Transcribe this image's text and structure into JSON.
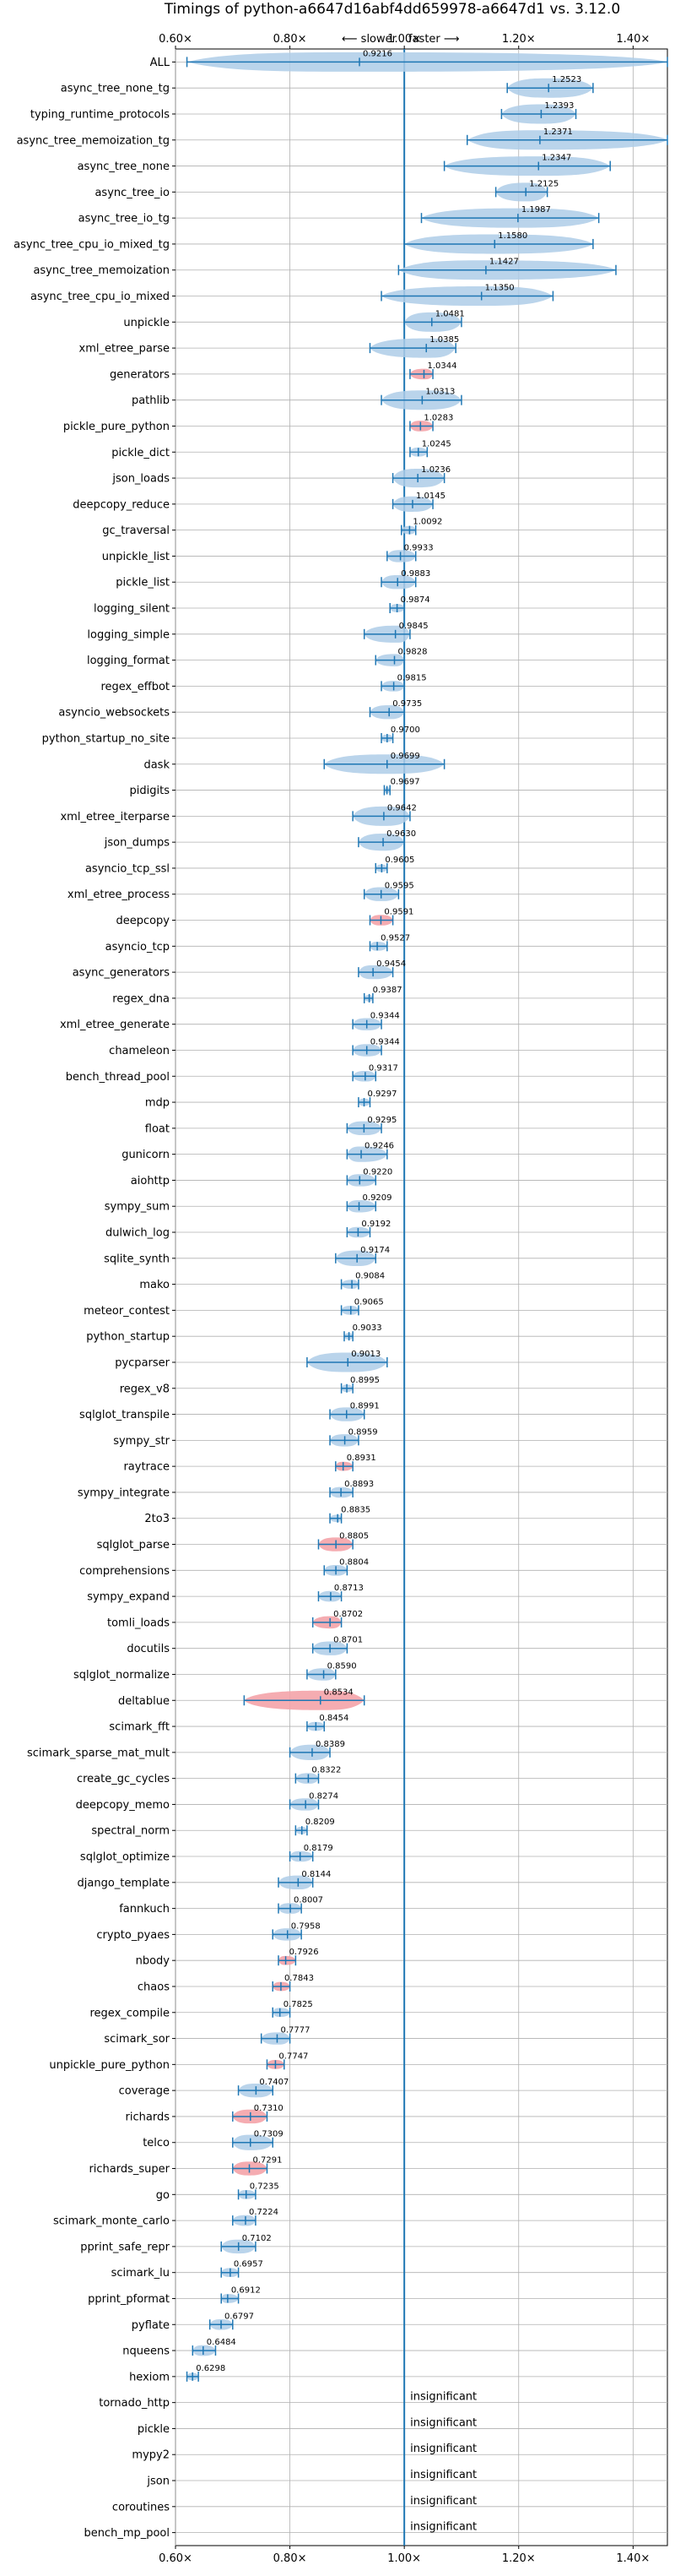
{
  "chart_data": {
    "type": "violin",
    "title": "Timings of python-a6647d16abf4dd659978-a6647d1 vs. 3.12.0",
    "direction_labels": {
      "slower": "⟵ slower",
      "faster": "faster ⟶"
    },
    "xlim": [
      0.6,
      1.46
    ],
    "xticks": [
      {
        "value": 0.6,
        "label": "0.60×"
      },
      {
        "value": 0.8,
        "label": "0.80×"
      },
      {
        "value": 1.0,
        "label": "1.00×"
      },
      {
        "value": 1.2,
        "label": "1.20×"
      },
      {
        "value": 1.4,
        "label": "1.40×"
      }
    ],
    "insignificant_label": "insignificant",
    "colors": {
      "normal": "#1f77b4",
      "highlight": "#f4a3a8",
      "reference": "#1f77b4"
    },
    "benchmarks": [
      {
        "name": "ALL",
        "value": 0.9216,
        "label": "0.9216",
        "lo": 0.62,
        "hi": 1.46,
        "red": false
      },
      {
        "name": "async_tree_none_tg",
        "value": 1.2523,
        "label": "1.2523",
        "lo": 1.18,
        "hi": 1.33,
        "red": false
      },
      {
        "name": "typing_runtime_protocols",
        "value": 1.2393,
        "label": "1.2393",
        "lo": 1.17,
        "hi": 1.3,
        "red": false
      },
      {
        "name": "async_tree_memoization_tg",
        "value": 1.2371,
        "label": "1.2371",
        "lo": 1.11,
        "hi": 1.46,
        "red": false
      },
      {
        "name": "async_tree_none",
        "value": 1.2347,
        "label": "1.2347",
        "lo": 1.07,
        "hi": 1.36,
        "red": false
      },
      {
        "name": "async_tree_io",
        "value": 1.2125,
        "label": "1.2125",
        "lo": 1.16,
        "hi": 1.25,
        "red": false
      },
      {
        "name": "async_tree_io_tg",
        "value": 1.1987,
        "label": "1.1987",
        "lo": 1.03,
        "hi": 1.34,
        "red": false
      },
      {
        "name": "async_tree_cpu_io_mixed_tg",
        "value": 1.158,
        "label": "1.1580",
        "lo": 1.0,
        "hi": 1.33,
        "red": false
      },
      {
        "name": "async_tree_memoization",
        "value": 1.1427,
        "label": "1.1427",
        "lo": 0.99,
        "hi": 1.37,
        "red": false
      },
      {
        "name": "async_tree_cpu_io_mixed",
        "value": 1.135,
        "label": "1.1350",
        "lo": 0.96,
        "hi": 1.26,
        "red": false
      },
      {
        "name": "unpickle",
        "value": 1.0481,
        "label": "1.0481",
        "lo": 1.0,
        "hi": 1.1,
        "red": false
      },
      {
        "name": "xml_etree_parse",
        "value": 1.0385,
        "label": "1.0385",
        "lo": 0.94,
        "hi": 1.09,
        "red": false
      },
      {
        "name": "generators",
        "value": 1.0344,
        "label": "1.0344",
        "lo": 1.01,
        "hi": 1.05,
        "red": true
      },
      {
        "name": "pathlib",
        "value": 1.0313,
        "label": "1.0313",
        "lo": 0.96,
        "hi": 1.1,
        "red": false
      },
      {
        "name": "pickle_pure_python",
        "value": 1.0283,
        "label": "1.0283",
        "lo": 1.01,
        "hi": 1.05,
        "red": true
      },
      {
        "name": "pickle_dict",
        "value": 1.0245,
        "label": "1.0245",
        "lo": 1.01,
        "hi": 1.04,
        "red": false
      },
      {
        "name": "json_loads",
        "value": 1.0236,
        "label": "1.0236",
        "lo": 0.98,
        "hi": 1.07,
        "red": false
      },
      {
        "name": "deepcopy_reduce",
        "value": 1.0145,
        "label": "1.0145",
        "lo": 0.98,
        "hi": 1.05,
        "red": false
      },
      {
        "name": "gc_traversal",
        "value": 1.0092,
        "label": "1.0092",
        "lo": 0.995,
        "hi": 1.02,
        "red": false
      },
      {
        "name": "unpickle_list",
        "value": 0.9933,
        "label": "0.9933",
        "lo": 0.97,
        "hi": 1.02,
        "red": false
      },
      {
        "name": "pickle_list",
        "value": 0.9883,
        "label": "0.9883",
        "lo": 0.96,
        "hi": 1.02,
        "red": false
      },
      {
        "name": "logging_silent",
        "value": 0.9874,
        "label": "0.9874",
        "lo": 0.975,
        "hi": 1.0,
        "red": false
      },
      {
        "name": "logging_simple",
        "value": 0.9845,
        "label": "0.9845",
        "lo": 0.93,
        "hi": 1.01,
        "red": false
      },
      {
        "name": "logging_format",
        "value": 0.9828,
        "label": "0.9828",
        "lo": 0.95,
        "hi": 1.0,
        "red": false
      },
      {
        "name": "regex_effbot",
        "value": 0.9815,
        "label": "0.9815",
        "lo": 0.96,
        "hi": 1.0,
        "red": false
      },
      {
        "name": "asyncio_websockets",
        "value": 0.9735,
        "label": "0.9735",
        "lo": 0.94,
        "hi": 1.0,
        "red": false
      },
      {
        "name": "python_startup_no_site",
        "value": 0.97,
        "label": "0.9700",
        "lo": 0.96,
        "hi": 0.98,
        "red": false
      },
      {
        "name": "dask",
        "value": 0.9699,
        "label": "0.9699",
        "lo": 0.86,
        "hi": 1.07,
        "red": false
      },
      {
        "name": "pidigits",
        "value": 0.9697,
        "label": "0.9697",
        "lo": 0.965,
        "hi": 0.975,
        "red": false
      },
      {
        "name": "xml_etree_iterparse",
        "value": 0.9642,
        "label": "0.9642",
        "lo": 0.91,
        "hi": 1.01,
        "red": false
      },
      {
        "name": "json_dumps",
        "value": 0.963,
        "label": "0.9630",
        "lo": 0.92,
        "hi": 1.0,
        "red": false
      },
      {
        "name": "asyncio_tcp_ssl",
        "value": 0.9605,
        "label": "0.9605",
        "lo": 0.95,
        "hi": 0.97,
        "red": false
      },
      {
        "name": "xml_etree_process",
        "value": 0.9595,
        "label": "0.9595",
        "lo": 0.93,
        "hi": 0.99,
        "red": false
      },
      {
        "name": "deepcopy",
        "value": 0.9591,
        "label": "0.9591",
        "lo": 0.94,
        "hi": 0.98,
        "red": true
      },
      {
        "name": "asyncio_tcp",
        "value": 0.9527,
        "label": "0.9527",
        "lo": 0.94,
        "hi": 0.97,
        "red": false
      },
      {
        "name": "async_generators",
        "value": 0.9454,
        "label": "0.9454",
        "lo": 0.92,
        "hi": 0.98,
        "red": false
      },
      {
        "name": "regex_dna",
        "value": 0.9387,
        "label": "0.9387",
        "lo": 0.93,
        "hi": 0.945,
        "red": false
      },
      {
        "name": "xml_etree_generate",
        "value": 0.9344,
        "label": "0.9344",
        "lo": 0.91,
        "hi": 0.96,
        "red": false
      },
      {
        "name": "chameleon",
        "value": 0.9344,
        "label": "0.9344",
        "lo": 0.91,
        "hi": 0.96,
        "red": false
      },
      {
        "name": "bench_thread_pool",
        "value": 0.9317,
        "label": "0.9317",
        "lo": 0.91,
        "hi": 0.95,
        "red": false
      },
      {
        "name": "mdp",
        "value": 0.9297,
        "label": "0.9297",
        "lo": 0.92,
        "hi": 0.94,
        "red": false
      },
      {
        "name": "float",
        "value": 0.9295,
        "label": "0.9295",
        "lo": 0.9,
        "hi": 0.96,
        "red": false
      },
      {
        "name": "gunicorn",
        "value": 0.9246,
        "label": "0.9246",
        "lo": 0.9,
        "hi": 0.97,
        "red": false
      },
      {
        "name": "aiohttp",
        "value": 0.922,
        "label": "0.9220",
        "lo": 0.9,
        "hi": 0.95,
        "red": false
      },
      {
        "name": "sympy_sum",
        "value": 0.9209,
        "label": "0.9209",
        "lo": 0.9,
        "hi": 0.95,
        "red": false
      },
      {
        "name": "dulwich_log",
        "value": 0.9192,
        "label": "0.9192",
        "lo": 0.9,
        "hi": 0.94,
        "red": false
      },
      {
        "name": "sqlite_synth",
        "value": 0.9174,
        "label": "0.9174",
        "lo": 0.88,
        "hi": 0.95,
        "red": false
      },
      {
        "name": "mako",
        "value": 0.9084,
        "label": "0.9084",
        "lo": 0.89,
        "hi": 0.92,
        "red": false
      },
      {
        "name": "meteor_contest",
        "value": 0.9065,
        "label": "0.9065",
        "lo": 0.89,
        "hi": 0.92,
        "red": false
      },
      {
        "name": "python_startup",
        "value": 0.9033,
        "label": "0.9033",
        "lo": 0.895,
        "hi": 0.91,
        "red": false
      },
      {
        "name": "pycparser",
        "value": 0.9013,
        "label": "0.9013",
        "lo": 0.83,
        "hi": 0.97,
        "red": false
      },
      {
        "name": "regex_v8",
        "value": 0.8995,
        "label": "0.8995",
        "lo": 0.89,
        "hi": 0.91,
        "red": false
      },
      {
        "name": "sqlglot_transpile",
        "value": 0.8991,
        "label": "0.8991",
        "lo": 0.87,
        "hi": 0.93,
        "red": false
      },
      {
        "name": "sympy_str",
        "value": 0.8959,
        "label": "0.8959",
        "lo": 0.87,
        "hi": 0.92,
        "red": false
      },
      {
        "name": "raytrace",
        "value": 0.8931,
        "label": "0.8931",
        "lo": 0.88,
        "hi": 0.91,
        "red": true
      },
      {
        "name": "sympy_integrate",
        "value": 0.8893,
        "label": "0.8893",
        "lo": 0.87,
        "hi": 0.91,
        "red": false
      },
      {
        "name": "2to3",
        "value": 0.8835,
        "label": "0.8835",
        "lo": 0.87,
        "hi": 0.89,
        "red": false
      },
      {
        "name": "sqlglot_parse",
        "value": 0.8805,
        "label": "0.8805",
        "lo": 0.85,
        "hi": 0.91,
        "red": true
      },
      {
        "name": "comprehensions",
        "value": 0.8804,
        "label": "0.8804",
        "lo": 0.86,
        "hi": 0.9,
        "red": false
      },
      {
        "name": "sympy_expand",
        "value": 0.8713,
        "label": "0.8713",
        "lo": 0.85,
        "hi": 0.89,
        "red": false
      },
      {
        "name": "tomli_loads",
        "value": 0.8702,
        "label": "0.8702",
        "lo": 0.84,
        "hi": 0.89,
        "red": true
      },
      {
        "name": "docutils",
        "value": 0.8701,
        "label": "0.8701",
        "lo": 0.84,
        "hi": 0.9,
        "red": false
      },
      {
        "name": "sqlglot_normalize",
        "value": 0.859,
        "label": "0.8590",
        "lo": 0.83,
        "hi": 0.88,
        "red": false
      },
      {
        "name": "deltablue",
        "value": 0.8534,
        "label": "0.8534",
        "lo": 0.72,
        "hi": 0.93,
        "red": true
      },
      {
        "name": "scimark_fft",
        "value": 0.8454,
        "label": "0.8454",
        "lo": 0.83,
        "hi": 0.86,
        "red": false
      },
      {
        "name": "scimark_sparse_mat_mult",
        "value": 0.8389,
        "label": "0.8389",
        "lo": 0.8,
        "hi": 0.87,
        "red": false
      },
      {
        "name": "create_gc_cycles",
        "value": 0.8322,
        "label": "0.8322",
        "lo": 0.81,
        "hi": 0.85,
        "red": false
      },
      {
        "name": "deepcopy_memo",
        "value": 0.8274,
        "label": "0.8274",
        "lo": 0.8,
        "hi": 0.85,
        "red": false
      },
      {
        "name": "spectral_norm",
        "value": 0.8209,
        "label": "0.8209",
        "lo": 0.81,
        "hi": 0.83,
        "red": false
      },
      {
        "name": "sqlglot_optimize",
        "value": 0.8179,
        "label": "0.8179",
        "lo": 0.8,
        "hi": 0.84,
        "red": false
      },
      {
        "name": "django_template",
        "value": 0.8144,
        "label": "0.8144",
        "lo": 0.78,
        "hi": 0.84,
        "red": false
      },
      {
        "name": "fannkuch",
        "value": 0.8007,
        "label": "0.8007",
        "lo": 0.78,
        "hi": 0.82,
        "red": false
      },
      {
        "name": "crypto_pyaes",
        "value": 0.7958,
        "label": "0.7958",
        "lo": 0.77,
        "hi": 0.82,
        "red": false
      },
      {
        "name": "nbody",
        "value": 0.7926,
        "label": "0.7926",
        "lo": 0.78,
        "hi": 0.81,
        "red": true
      },
      {
        "name": "chaos",
        "value": 0.7843,
        "label": "0.7843",
        "lo": 0.77,
        "hi": 0.8,
        "red": true
      },
      {
        "name": "regex_compile",
        "value": 0.7825,
        "label": "0.7825",
        "lo": 0.77,
        "hi": 0.8,
        "red": false
      },
      {
        "name": "scimark_sor",
        "value": 0.7777,
        "label": "0.7777",
        "lo": 0.75,
        "hi": 0.8,
        "red": false
      },
      {
        "name": "unpickle_pure_python",
        "value": 0.7747,
        "label": "0.7747",
        "lo": 0.76,
        "hi": 0.79,
        "red": true
      },
      {
        "name": "coverage",
        "value": 0.7407,
        "label": "0.7407",
        "lo": 0.71,
        "hi": 0.77,
        "red": false
      },
      {
        "name": "richards",
        "value": 0.731,
        "label": "0.7310",
        "lo": 0.7,
        "hi": 0.76,
        "red": true
      },
      {
        "name": "telco",
        "value": 0.7309,
        "label": "0.7309",
        "lo": 0.7,
        "hi": 0.77,
        "red": false
      },
      {
        "name": "richards_super",
        "value": 0.7291,
        "label": "0.7291",
        "lo": 0.7,
        "hi": 0.76,
        "red": true
      },
      {
        "name": "go",
        "value": 0.7235,
        "label": "0.7235",
        "lo": 0.71,
        "hi": 0.74,
        "red": false
      },
      {
        "name": "scimark_monte_carlo",
        "value": 0.7224,
        "label": "0.7224",
        "lo": 0.7,
        "hi": 0.74,
        "red": false
      },
      {
        "name": "pprint_safe_repr",
        "value": 0.7102,
        "label": "0.7102",
        "lo": 0.68,
        "hi": 0.74,
        "red": false
      },
      {
        "name": "scimark_lu",
        "value": 0.6957,
        "label": "0.6957",
        "lo": 0.68,
        "hi": 0.71,
        "red": false
      },
      {
        "name": "pprint_pformat",
        "value": 0.6912,
        "label": "0.6912",
        "lo": 0.68,
        "hi": 0.71,
        "red": false
      },
      {
        "name": "pyflate",
        "value": 0.6797,
        "label": "0.6797",
        "lo": 0.66,
        "hi": 0.7,
        "red": false
      },
      {
        "name": "nqueens",
        "value": 0.6484,
        "label": "0.6484",
        "lo": 0.63,
        "hi": 0.67,
        "red": false
      },
      {
        "name": "hexiom",
        "value": 0.6298,
        "label": "0.6298",
        "lo": 0.62,
        "hi": 0.64,
        "red": false
      },
      {
        "name": "tornado_http",
        "insignificant": true
      },
      {
        "name": "pickle",
        "insignificant": true
      },
      {
        "name": "mypy2",
        "insignificant": true
      },
      {
        "name": "json",
        "insignificant": true
      },
      {
        "name": "coroutines",
        "insignificant": true
      },
      {
        "name": "bench_mp_pool",
        "insignificant": true
      }
    ]
  }
}
